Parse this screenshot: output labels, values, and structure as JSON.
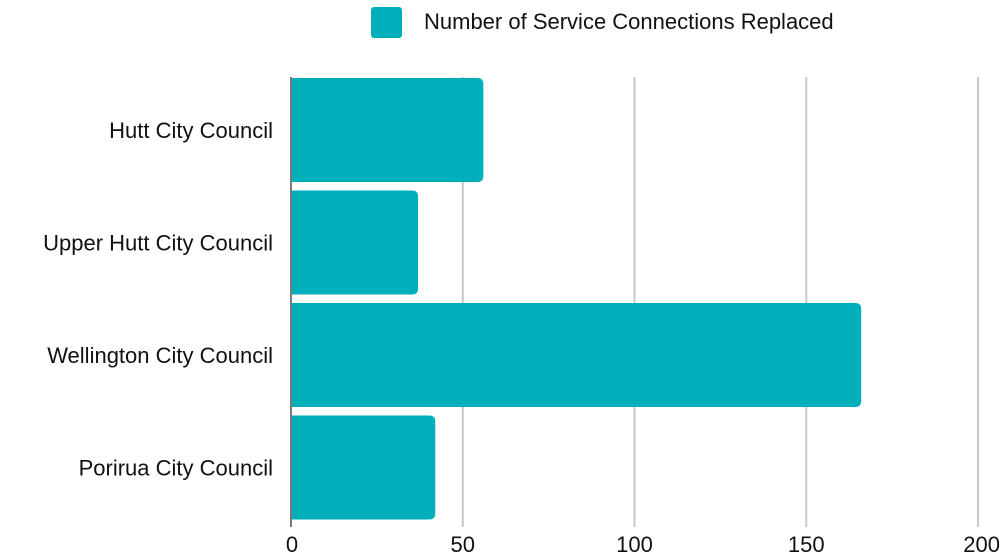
{
  "chart_data": {
    "type": "bar",
    "orientation": "horizontal",
    "categories": [
      "Hutt City Council",
      "Upper Hutt City Council",
      "Wellington City Council",
      "Porirua City Council"
    ],
    "series": [
      {
        "name": "Number of Service Connections Replaced",
        "values": [
          56,
          37,
          166,
          42
        ],
        "color": "#00afb9"
      }
    ],
    "xlim": [
      0,
      200
    ],
    "xticks": [
      0,
      50,
      100,
      150,
      200
    ],
    "grid": "vertical",
    "legend_position": "top-center",
    "title": "",
    "xlabel": "",
    "ylabel": ""
  }
}
